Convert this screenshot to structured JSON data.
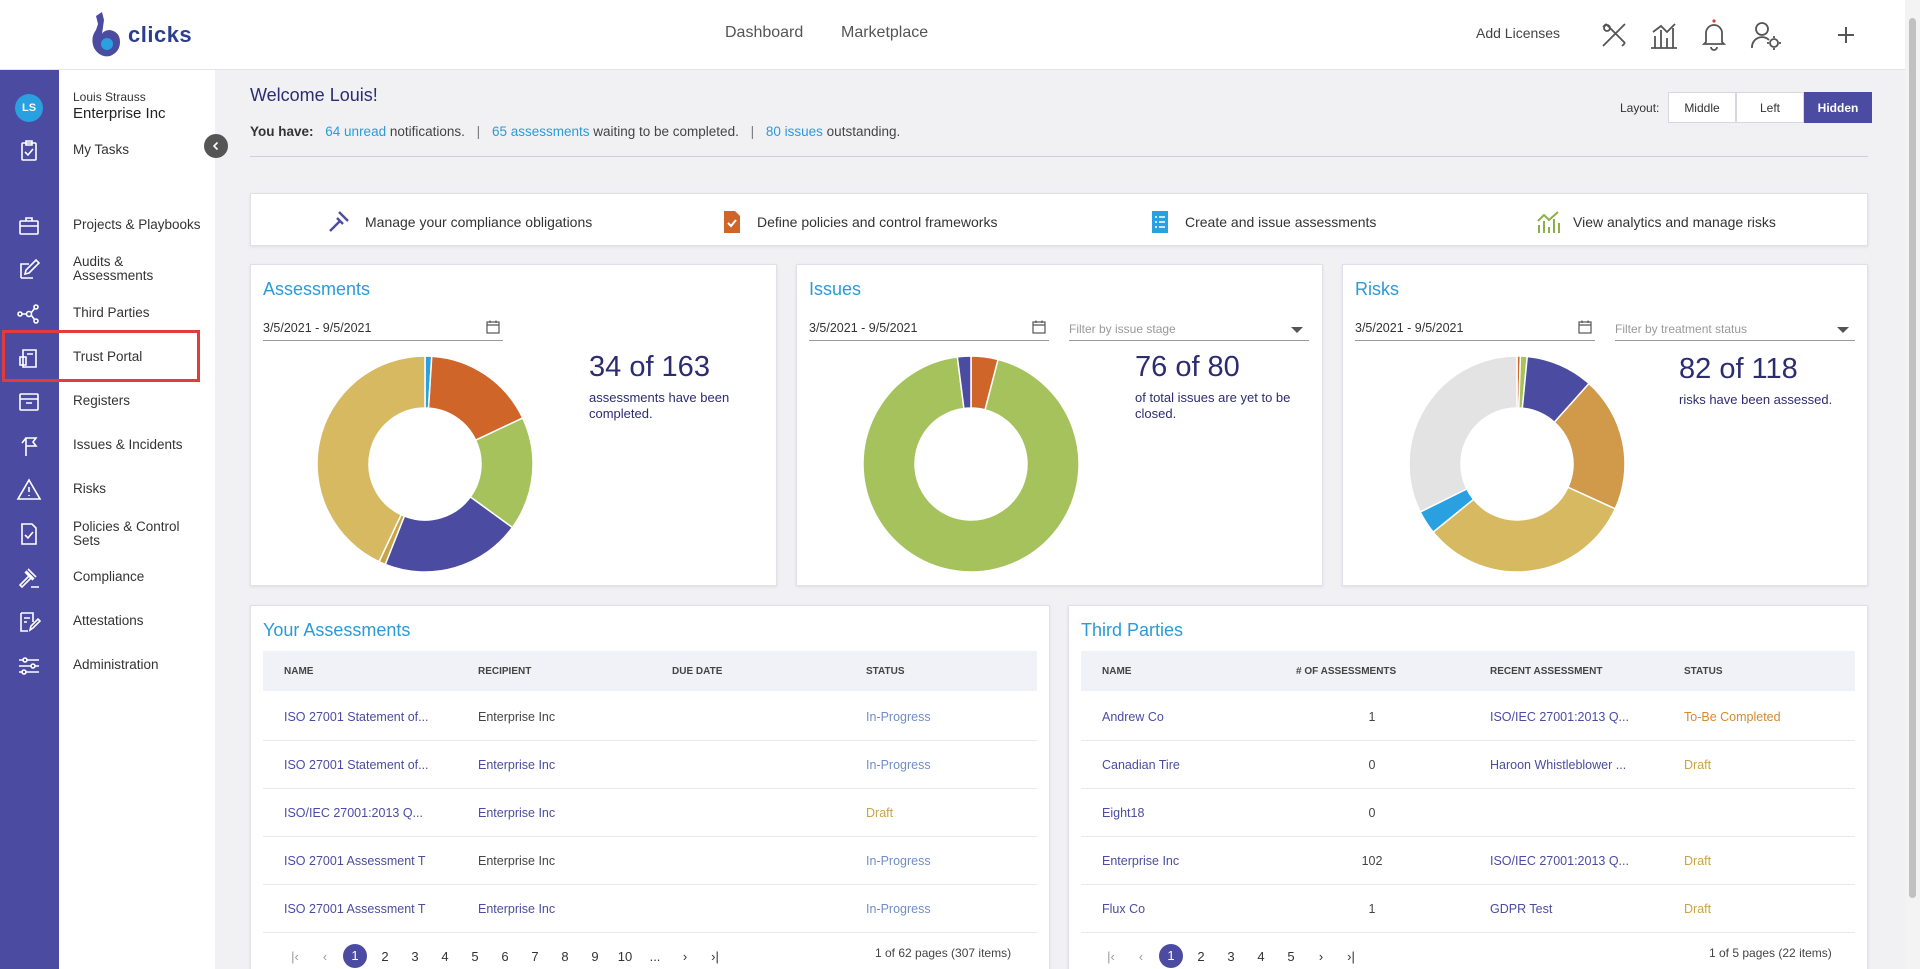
{
  "header": {
    "logo_text": "clicks",
    "nav": [
      "Dashboard",
      "Marketplace"
    ],
    "add_licenses": "Add Licenses",
    "icons": [
      "tools-icon",
      "analytics-icon",
      "bell-icon",
      "user-settings-icon",
      "plus-icon"
    ]
  },
  "sidebar": {
    "avatar_initials": "LS",
    "user_name": "Louis Strauss",
    "org_name": "Enterprise Inc",
    "my_tasks": "My Tasks",
    "items": [
      {
        "label": "Projects & Playbooks",
        "icon": "briefcase-icon"
      },
      {
        "label": "Audits & Assessments",
        "icon": "edit-icon"
      },
      {
        "label": "Third Parties",
        "icon": "network-icon"
      },
      {
        "label": "Trust Portal",
        "icon": "trust-portal-icon"
      },
      {
        "label": "Registers",
        "icon": "register-icon"
      },
      {
        "label": "Issues & Incidents",
        "icon": "issues-icon"
      },
      {
        "label": "Risks",
        "icon": "warning-icon"
      },
      {
        "label": "Policies & Control Sets",
        "icon": "policy-icon"
      },
      {
        "label": "Compliance",
        "icon": "gavel-icon"
      },
      {
        "label": "Attestations",
        "icon": "attestation-icon"
      },
      {
        "label": "Administration",
        "icon": "sliders-icon"
      }
    ]
  },
  "welcome": {
    "title": "Welcome Louis!",
    "you_have": "You have:",
    "unread_link": "64 unread",
    "unread_text": " notifications.",
    "assessments_link": "65 assessments",
    "assessments_text": " waiting to be completed.",
    "issues_link": "80 issues",
    "issues_text": " outstanding.",
    "sep": "|"
  },
  "layout": {
    "label": "Layout:",
    "options": [
      "Middle",
      "Left",
      "Hidden"
    ],
    "active": "Hidden"
  },
  "quick_actions": [
    {
      "label": "Manage your compliance obligations",
      "icon": "gavel-icon",
      "color": "#4b4ca1"
    },
    {
      "label": "Define policies and control frameworks",
      "icon": "policy-doc-icon",
      "color": "#d0652a"
    },
    {
      "label": "Create and issue assessments",
      "icon": "checklist-icon",
      "color": "#29a0e0"
    },
    {
      "label": "View analytics and manage risks",
      "icon": "chart-icon",
      "color": "#8bb04a"
    }
  ],
  "assessments_card": {
    "title": "Assessments",
    "date_range": "3/5/2021 - 9/5/2021",
    "big": "34 of 163",
    "sub": "assessments have been completed."
  },
  "issues_card": {
    "title": "Issues",
    "date_range": "3/5/2021 - 9/5/2021",
    "filter_placeholder": "Filter by issue stage",
    "big": "76 of 80",
    "sub": "of total issues are yet to be closed."
  },
  "risks_card": {
    "title": "Risks",
    "date_range": "3/5/2021 - 9/5/2021",
    "filter_placeholder": "Filter by treatment status",
    "big": "82 of 118",
    "sub": "risks have been assessed."
  },
  "chart_data": [
    {
      "type": "pie",
      "title": "Assessments",
      "slices": [
        {
          "value": 1,
          "color": "#29a0e0"
        },
        {
          "value": 17,
          "color": "#d0652a"
        },
        {
          "value": 17,
          "color": "#a5c25c"
        },
        {
          "value": 21,
          "color": "#4b4ca1"
        },
        {
          "value": 1,
          "color": "#c8a34b"
        },
        {
          "value": 43,
          "color": "#d6b961"
        }
      ]
    },
    {
      "type": "pie",
      "title": "Issues",
      "slices": [
        {
          "value": 4,
          "color": "#d0652a"
        },
        {
          "value": 93,
          "color": "#a5c25c"
        },
        {
          "value": 2,
          "color": "#4b4ca1"
        }
      ]
    },
    {
      "type": "pie",
      "title": "Risks",
      "slices": [
        {
          "value": 0.5,
          "color": "#d0652a"
        },
        {
          "value": 1,
          "color": "#a5c25c"
        },
        {
          "value": 10,
          "color": "#4b4ca1"
        },
        {
          "value": 20,
          "color": "#d09a4a"
        },
        {
          "value": 32,
          "color": "#d6b961"
        },
        {
          "value": 3.5,
          "color": "#29a0e0"
        },
        {
          "value": 32,
          "color": "#e3e3e3"
        }
      ]
    }
  ],
  "your_assessments": {
    "title": "Your Assessments",
    "columns": [
      "NAME",
      "RECIPIENT",
      "DUE DATE",
      "STATUS"
    ],
    "rows": [
      {
        "name": "ISO 27001 Statement of...",
        "recipient": "Enterprise Inc",
        "recipient_link": false,
        "due": "",
        "status": "In-Progress",
        "status_kind": "prog"
      },
      {
        "name": "ISO 27001 Statement of...",
        "recipient": "Enterprise Inc",
        "recipient_link": true,
        "due": "",
        "status": "In-Progress",
        "status_kind": "prog"
      },
      {
        "name": "ISO/IEC 27001:2013 Q...",
        "recipient": "Enterprise Inc",
        "recipient_link": true,
        "due": "",
        "status": "Draft",
        "status_kind": "draft"
      },
      {
        "name": "ISO 27001 Assessment T",
        "recipient": "Enterprise Inc",
        "recipient_link": false,
        "due": "",
        "status": "In-Progress",
        "status_kind": "prog"
      },
      {
        "name": "ISO 27001 Assessment T",
        "recipient": "Enterprise Inc",
        "recipient_link": true,
        "due": "",
        "status": "In-Progress",
        "status_kind": "prog"
      }
    ],
    "pages": [
      "1",
      "2",
      "3",
      "4",
      "5",
      "6",
      "7",
      "8",
      "9",
      "10",
      "..."
    ],
    "page_info": "1 of 62 pages (307 items)"
  },
  "third_parties": {
    "title": "Third Parties",
    "columns": [
      "NAME",
      "# OF ASSESSMENTS",
      "RECENT ASSESSMENT",
      "STATUS"
    ],
    "rows": [
      {
        "name": "Andrew Co",
        "count": "1",
        "recent": "ISO/IEC 27001:2013 Q...",
        "status": "To-Be Completed",
        "status_kind": "tbc"
      },
      {
        "name": "Canadian Tire",
        "count": "0",
        "recent": "Haroon Whistleblower ...",
        "status": "Draft",
        "status_kind": "draft"
      },
      {
        "name": "Eight18",
        "count": "0",
        "recent": "",
        "status": "",
        "status_kind": ""
      },
      {
        "name": "Enterprise Inc",
        "count": "102",
        "recent": "ISO/IEC 27001:2013 Q...",
        "status": "Draft",
        "status_kind": "draft"
      },
      {
        "name": "Flux Co",
        "count": "1",
        "recent": "GDPR Test",
        "status": "Draft",
        "status_kind": "draft"
      }
    ],
    "pages": [
      "1",
      "2",
      "3",
      "4",
      "5"
    ],
    "page_info": "1 of 5 pages (22 items)"
  }
}
